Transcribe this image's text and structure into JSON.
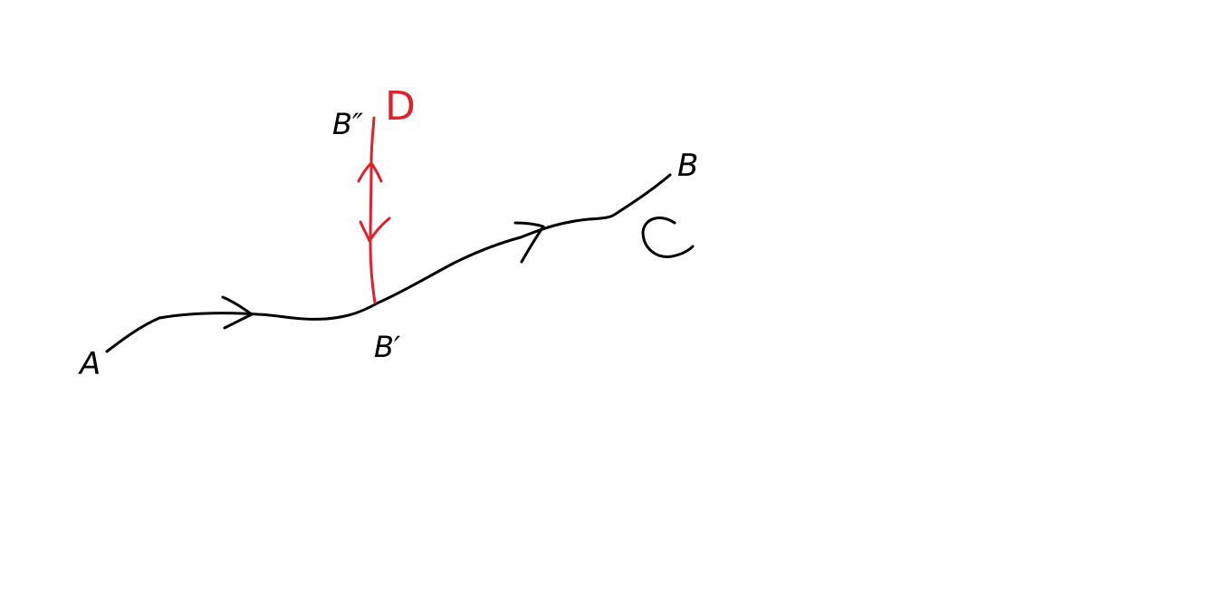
{
  "labels": {
    "a": "A",
    "b": "B",
    "b_prime": "B′",
    "b_double_prime": "B″",
    "c": "C",
    "d": "D"
  },
  "colors": {
    "ink": "#000000",
    "red": "#e0202a",
    "background": "#ffffff"
  }
}
